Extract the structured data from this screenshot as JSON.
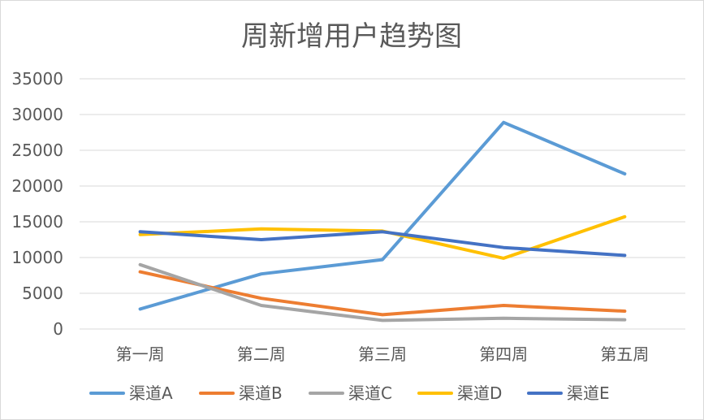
{
  "chart_data": {
    "type": "line",
    "title": "周新增用户趋势图",
    "xlabel": "",
    "ylabel": "",
    "categories": [
      "第一周",
      "第二周",
      "第三周",
      "第四周",
      "第五周"
    ],
    "ylim": [
      0,
      35000
    ],
    "yticks": [
      0,
      5000,
      10000,
      15000,
      20000,
      25000,
      30000,
      35000
    ],
    "ytick_labels": [
      "0",
      "5000",
      "10000",
      "15000",
      "20000",
      "25000",
      "30000",
      "35000"
    ],
    "grid": true,
    "legend_position": "bottom",
    "series": [
      {
        "name": "渠道A",
        "color": "#5B9BD5",
        "values": [
          2800,
          7700,
          9700,
          28900,
          21700
        ]
      },
      {
        "name": "渠道B",
        "color": "#ED7D31",
        "values": [
          8000,
          4300,
          2000,
          3300,
          2500
        ]
      },
      {
        "name": "渠道C",
        "color": "#A5A5A5",
        "values": [
          9000,
          3300,
          1200,
          1500,
          1300
        ]
      },
      {
        "name": "渠道D",
        "color": "#FFC000",
        "values": [
          13200,
          14000,
          13700,
          9900,
          15700
        ]
      },
      {
        "name": "渠道E",
        "color": "#4472C4",
        "values": [
          13600,
          12500,
          13600,
          11400,
          10300
        ]
      }
    ]
  }
}
